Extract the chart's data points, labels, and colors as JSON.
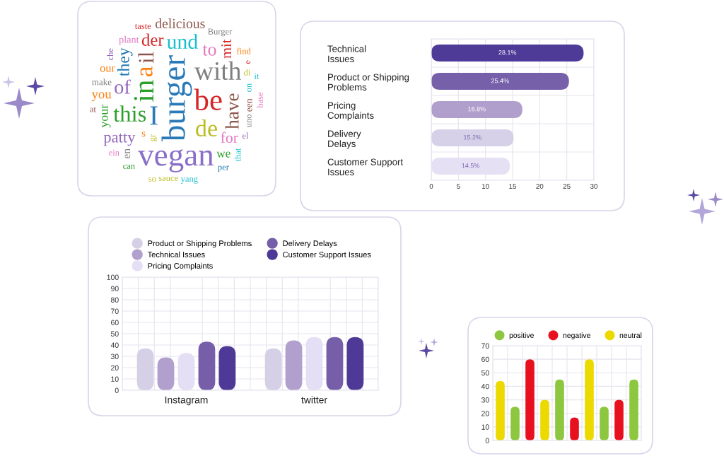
{
  "chart_data": [
    {
      "type": "other",
      "annotations": [
        "burger",
        "vegan",
        "be",
        "in",
        "I",
        "with",
        "a",
        "de",
        "this",
        "il",
        "und",
        "of",
        "have",
        "to",
        "der",
        "they",
        "patty",
        "for",
        "mit",
        "delicious",
        "you",
        "your",
        "we",
        "our",
        "en",
        "s",
        "plant",
        "een",
        "make",
        "Burger",
        "on",
        "di",
        "taste",
        "uno",
        "sauce",
        "yang",
        "che",
        "find",
        "el",
        "that",
        "can",
        "per",
        "base",
        "it",
        "ein",
        "gr",
        "so",
        "at",
        "e"
      ],
      "colors": [
        "#2a7ab8",
        "#8a6fc9",
        "#d62728",
        "#2ca02c",
        "#2a7ab8",
        "#7f7f7f",
        "#ff7f0e",
        "#bcbd22",
        "#2ca02c",
        "#8c564b",
        "#17becf",
        "#9467bd",
        "#8c564b",
        "#e377c2",
        "#d62728",
        "#1f77b4",
        "#9467bd",
        "#e377c2",
        "#d62728",
        "#8c564b",
        "#ff7f0e",
        "#2ca02c",
        "#2ca02c",
        "#ff7f0e",
        "#7f7f7f",
        "#ff7f0e",
        "#e377c2",
        "#8c564b",
        "#7f7f7f",
        "#7f7f7f",
        "#17becf",
        "#bcbd22",
        "#d62728",
        "#7f7f7f",
        "#bcbd22",
        "#17becf",
        "#9467bd",
        "#ff7f0e",
        "#9467bd",
        "#17becf",
        "#2ca02c",
        "#1f77b4",
        "#e377c2",
        "#17becf",
        "#e377c2",
        "#bcbd22",
        "#bcbd22",
        "#8c564b",
        "#d62728"
      ]
    },
    {
      "type": "bar",
      "orientation": "horizontal",
      "categories": [
        "Technical Issues",
        "Product or Shipping Problems",
        "Pricing Complaints",
        "Delivery Delays",
        "Customer Support Issues"
      ],
      "values": [
        28.1,
        25.4,
        16.8,
        15.2,
        14.5
      ],
      "value_labels": [
        "28.1%",
        "25.4%",
        "16.8%",
        "15.2%",
        "14.5%"
      ],
      "colors": [
        "#4e3a97",
        "#7760aa",
        "#b09fcd",
        "#d6d1e8",
        "#e6e0f5"
      ],
      "xlim": [
        0,
        30
      ],
      "xticks": [
        0,
        5,
        10,
        15,
        20,
        25,
        30
      ],
      "grid": true
    },
    {
      "type": "bar",
      "categories": [
        "Instagram",
        "twitter"
      ],
      "series": [
        {
          "name": "Product or Shipping Problems",
          "color": "#d5d0e6",
          "values": [
            37,
            37
          ]
        },
        {
          "name": "Technical Issues",
          "color": "#b1a0cd",
          "values": [
            29,
            44
          ]
        },
        {
          "name": "Pricing Complaints",
          "color": "#e4dff4",
          "values": [
            33,
            47
          ]
        },
        {
          "name": "Delivery Delays",
          "color": "#765fa8",
          "values": [
            43,
            47
          ]
        },
        {
          "name": "Customer Support Issues",
          "color": "#4e3a96",
          "values": [
            39,
            47
          ]
        }
      ],
      "ylim": [
        0,
        100
      ],
      "yticks": [
        0,
        10,
        20,
        30,
        40,
        50,
        60,
        70,
        80,
        90,
        100
      ],
      "grid": true,
      "legend": "top"
    },
    {
      "type": "bar",
      "categories": [
        null,
        null,
        null,
        null,
        null,
        null,
        null,
        null,
        null,
        null
      ],
      "series": [
        {
          "name": "positive",
          "color": "#8dc63f",
          "values": [
            null,
            25,
            null,
            null,
            45,
            null,
            null,
            25,
            null,
            45
          ]
        },
        {
          "name": "negative",
          "color": "#e8101e",
          "values": [
            null,
            null,
            60,
            null,
            null,
            17,
            null,
            null,
            30,
            null
          ]
        },
        {
          "name": "neutral",
          "color": "#ecd900",
          "values": [
            44,
            null,
            null,
            30,
            null,
            null,
            60,
            null,
            null,
            null
          ]
        }
      ],
      "stacked": true,
      "ylim": [
        0,
        70
      ],
      "yticks": [
        0,
        10,
        20,
        30,
        40,
        50,
        60,
        70
      ],
      "grid": true,
      "legend": "top"
    }
  ]
}
